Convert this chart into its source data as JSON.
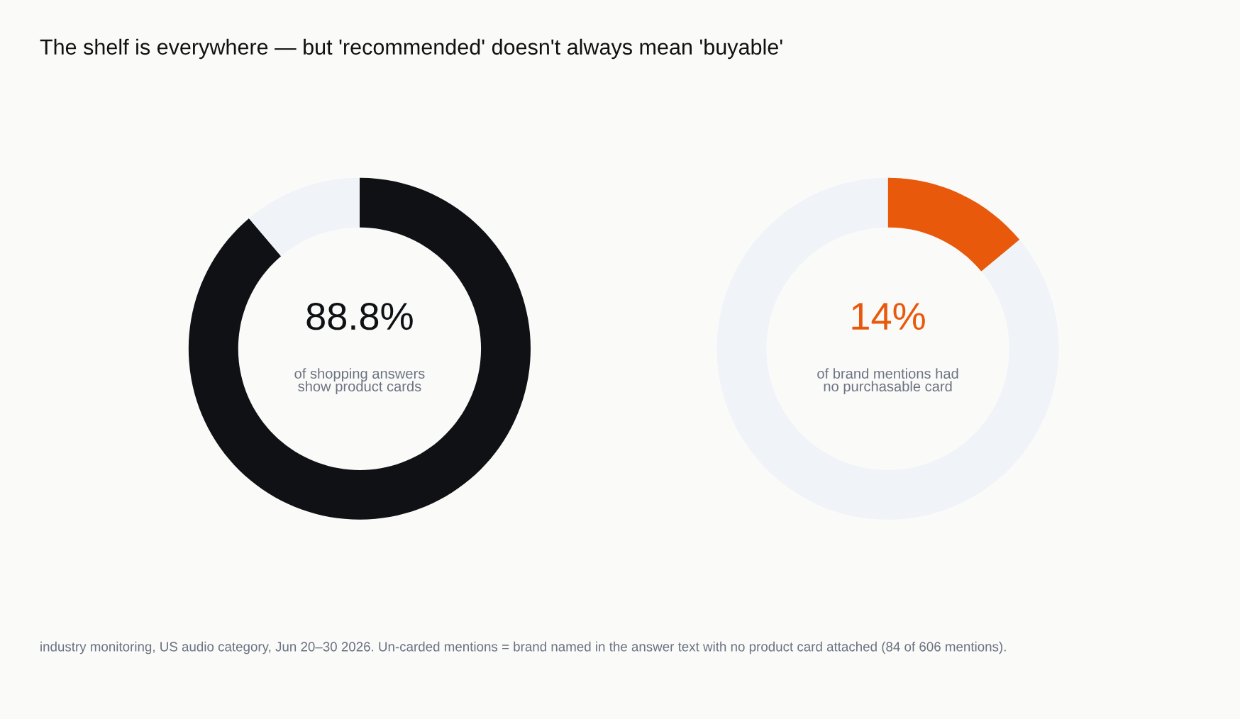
{
  "chart_data": [
    {
      "type": "donut",
      "title": "The shelf is everywhere — but 'recommended' doesn't always mean 'buyable'",
      "categories": [
        null,
        null
      ],
      "values": [
        88.8,
        11.2
      ],
      "colors": [
        "#0f1115",
        "#f0f4f8"
      ],
      "annotations": [
        "88.8%",
        "of shopping answers\nshow product cards",
        "industry monitoring, US audio category, Jun 20–30 2026. Un-carded mentions = brand named in the answer text with no product card attached (84 of 606 mentions)."
      ]
    },
    {
      "type": "donut",
      "categories": [
        null,
        null
      ],
      "values": [
        14,
        86
      ],
      "colors": [
        "#e8590c",
        "#f0f4f8"
      ],
      "annotations": [
        "14%",
        "of brand mentions had\nno purchasable card"
      ]
    }
  ]
}
